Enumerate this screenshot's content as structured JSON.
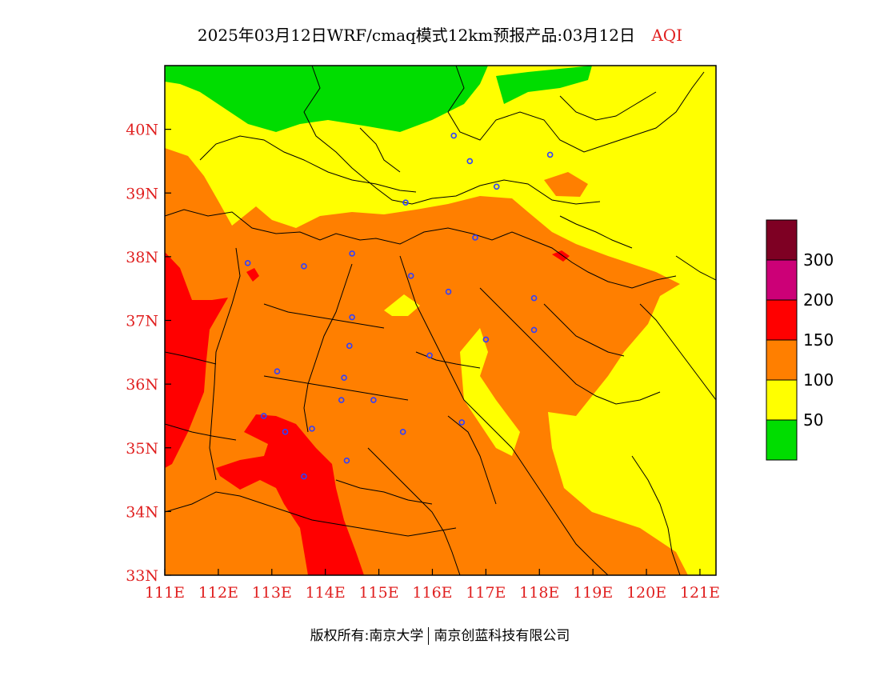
{
  "title": {
    "main": "2025年03月12日WRF/cmaq模式12km预报产品:03月12日",
    "variable": "AQI"
  },
  "map": {
    "lat_ticks": [
      "33N",
      "34N",
      "35N",
      "36N",
      "37N",
      "38N",
      "39N",
      "40N"
    ],
    "lon_ticks": [
      "111E",
      "112E",
      "113E",
      "114E",
      "115E",
      "116E",
      "117E",
      "118E",
      "119E",
      "120E",
      "121E"
    ],
    "lat_range": [
      33,
      41
    ],
    "lon_range": [
      111,
      121.3
    ],
    "colors": {
      "green": "#00dd00",
      "yellow": "#ffff00",
      "orange": "#ff7f00",
      "red": "#ff0000",
      "purple": "#cc0077",
      "maroon": "#7e0023",
      "border": "#000000",
      "station": "#3040ff",
      "tick_label": "#e02020"
    },
    "stations": [
      [
        116.4,
        39.9
      ],
      [
        116.7,
        39.5
      ],
      [
        117.2,
        39.1
      ],
      [
        118.2,
        39.6
      ],
      [
        115.5,
        38.85
      ],
      [
        116.8,
        38.3
      ],
      [
        112.55,
        37.9
      ],
      [
        113.6,
        37.85
      ],
      [
        114.5,
        38.05
      ],
      [
        115.6,
        37.7
      ],
      [
        116.3,
        37.45
      ],
      [
        117.9,
        37.35
      ],
      [
        114.5,
        37.05
      ],
      [
        114.45,
        36.6
      ],
      [
        117.0,
        36.7
      ],
      [
        117.9,
        36.85
      ],
      [
        115.95,
        36.45
      ],
      [
        113.1,
        36.2
      ],
      [
        114.35,
        36.1
      ],
      [
        114.3,
        35.75
      ],
      [
        114.9,
        35.75
      ],
      [
        112.85,
        35.5
      ],
      [
        113.25,
        35.25
      ],
      [
        113.75,
        35.3
      ],
      [
        115.45,
        35.25
      ],
      [
        116.55,
        35.4
      ],
      [
        114.4,
        34.8
      ],
      [
        113.6,
        34.55
      ]
    ]
  },
  "legend": {
    "labels": [
      "50",
      "100",
      "150",
      "200",
      "300"
    ],
    "colors": [
      "#00dd00",
      "#ffff00",
      "#ff7f00",
      "#ff0000",
      "#cc0077",
      "#7e0023"
    ]
  },
  "footer": {
    "left": "版权所有:南京大学",
    "right": "南京创蓝科技有限公司"
  }
}
